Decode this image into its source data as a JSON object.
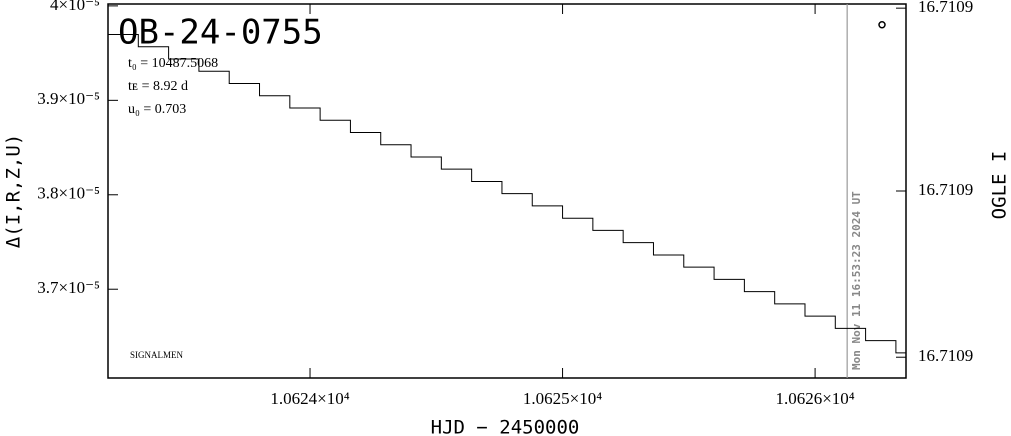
{
  "chart_data": {
    "type": "step",
    "title": "OB-24-0755",
    "parameters": [
      "t₀ = 10487.5068",
      "tᴇ = 8.92 d",
      "u₀ = 0.703"
    ],
    "credit": "SIGNALMEN",
    "timestamp": "Mon Nov 11 16:53:23 2024 UT",
    "timestamp_x": 10626.127,
    "x_label": "HJD − 2450000",
    "y_label": "Δ(I,R,Z,U)",
    "y2_label": "OGLE I",
    "xlim": [
      10623.2,
      10626.36
    ],
    "xticks": [
      {
        "value": 10624,
        "label": "1.0624×10⁴"
      },
      {
        "value": 10625,
        "label": "1.0625×10⁴"
      },
      {
        "value": 10626,
        "label": "1.0626×10⁴"
      }
    ],
    "ylim": [
      3.606e-05,
      4.002e-05
    ],
    "yticks": [
      {
        "value": 3.7e-05,
        "label": "3.7×10⁻⁵"
      },
      {
        "value": 3.8e-05,
        "label": "3.8×10⁻⁵"
      },
      {
        "value": 3.9e-05,
        "label": "3.9×10⁻⁵"
      },
      {
        "value": 4e-05,
        "label": "4×10⁻⁵"
      }
    ],
    "y2lim": [
      16.71086,
      16.71095
    ],
    "y2ticks": [
      {
        "value": 16.710865,
        "label": "16.7109"
      },
      {
        "value": 16.710905,
        "label": "16.7109"
      },
      {
        "value": 16.710949,
        "label": "16.7109"
      }
    ],
    "series": [
      {
        "name": "model",
        "color": "#000000",
        "x": [
          10623.2,
          10623.32,
          10623.44,
          10623.56,
          10623.68,
          10623.8,
          10623.92,
          10624.04,
          10624.16,
          10624.28,
          10624.4,
          10624.52,
          10624.64,
          10624.76,
          10624.88,
          10625.0,
          10625.12,
          10625.24,
          10625.36,
          10625.48,
          10625.6,
          10625.72,
          10625.84,
          10625.96,
          10626.08,
          10626.2,
          10626.32
        ],
        "values": [
          3.9697e-05,
          3.9567e-05,
          3.9438e-05,
          3.9308e-05,
          3.9178e-05,
          3.9049e-05,
          3.8919e-05,
          3.8789e-05,
          3.866e-05,
          3.853e-05,
          3.84e-05,
          3.8271e-05,
          3.8141e-05,
          3.8012e-05,
          3.7882e-05,
          3.7752e-05,
          3.7623e-05,
          3.7493e-05,
          3.7363e-05,
          3.7234e-05,
          3.7104e-05,
          3.6975e-05,
          3.6845e-05,
          3.6715e-05,
          3.6586e-05,
          3.6456e-05,
          3.6326e-05
        ]
      },
      {
        "name": "OGLE",
        "color": "#000000",
        "axis": "y2",
        "x": [
          10626.265
        ],
        "values": [
          16.710945
        ]
      }
    ]
  }
}
